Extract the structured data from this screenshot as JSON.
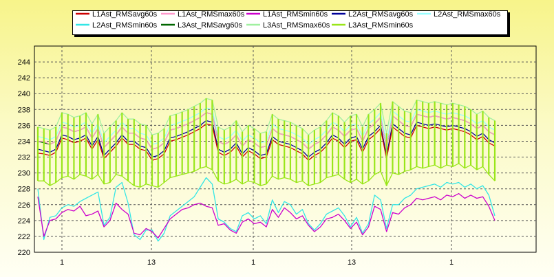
{
  "chart_data": {
    "type": "line",
    "title": "",
    "xlabel": "",
    "ylabel": "",
    "ylim": [
      220,
      246
    ],
    "yticks": [
      220,
      222,
      224,
      226,
      228,
      230,
      232,
      234,
      236,
      238,
      240,
      242,
      244
    ],
    "grid": true,
    "legend_position": "top",
    "x_tick_labels": [
      "1",
      "13",
      "1",
      "13",
      "1"
    ],
    "series": [
      {
        "name": "L1Ast_RMSavg60s",
        "color": "#cc0000",
        "values": [
          232.5,
          232.4,
          232.2,
          232.6,
          234.4,
          234.2,
          233.8,
          234.0,
          234.4,
          233.0,
          234.2,
          231.8,
          232.6,
          233.4,
          234.4,
          233.6,
          233.6,
          233.0,
          232.8,
          231.6,
          231.8,
          232.4,
          234.0,
          234.2,
          234.5,
          234.8,
          235.2,
          235.6,
          236.2,
          236.0,
          232.6,
          232.2,
          232.6,
          233.4,
          232.0,
          232.8,
          232.4,
          231.8,
          232.0,
          234.2,
          233.6,
          233.4,
          233.2,
          232.8,
          232.4,
          231.6,
          232.2,
          232.6,
          233.4,
          234.4,
          234.0,
          233.2,
          234.0,
          234.2,
          232.6,
          234.2,
          234.8,
          235.6,
          231.8,
          235.8,
          235.2,
          234.6,
          234.4,
          236.0,
          235.8,
          235.6,
          235.8,
          235.6,
          235.4,
          235.6,
          235.4,
          235.2,
          234.8,
          234.2,
          234.6,
          233.8,
          233.4
        ]
      },
      {
        "name": "L1Ast_RMSmax60s",
        "color": "#ff99cc",
        "values": [
          234.0,
          234.0,
          233.6,
          234.0,
          235.8,
          235.6,
          235.2,
          235.4,
          235.8,
          234.4,
          235.6,
          233.2,
          234.0,
          234.8,
          235.8,
          235.0,
          235.0,
          234.4,
          234.2,
          233.0,
          233.2,
          233.8,
          235.4,
          235.6,
          235.9,
          236.2,
          236.6,
          237.0,
          237.6,
          237.4,
          234.0,
          233.6,
          234.0,
          234.8,
          233.4,
          234.2,
          233.8,
          233.2,
          233.4,
          235.6,
          235.0,
          234.8,
          234.6,
          234.2,
          233.8,
          233.0,
          233.6,
          234.0,
          234.8,
          235.8,
          235.4,
          234.6,
          235.4,
          235.6,
          234.0,
          235.6,
          236.2,
          237.0,
          233.2,
          237.2,
          236.6,
          236.0,
          235.8,
          237.4,
          237.2,
          237.0,
          237.2,
          237.0,
          236.8,
          237.0,
          236.8,
          236.6,
          236.2,
          235.6,
          236.0,
          235.2,
          234.8
        ]
      },
      {
        "name": "L1Ast_RMSmin60s",
        "color": "#cc00cc",
        "values": [
          227.0,
          222.0,
          224.0,
          224.2,
          225.0,
          225.4,
          225.2,
          225.8,
          224.6,
          224.8,
          225.2,
          223.2,
          224.0,
          226.2,
          225.4,
          224.8,
          222.4,
          222.2,
          223.0,
          222.6,
          221.8,
          223.0,
          224.2,
          224.8,
          225.4,
          225.6,
          226.0,
          226.2,
          225.8,
          225.6,
          223.4,
          223.6,
          222.8,
          222.4,
          223.8,
          224.2,
          223.6,
          223.8,
          223.2,
          225.4,
          224.4,
          225.6,
          225.0,
          224.2,
          224.6,
          223.4,
          222.6,
          223.2,
          224.2,
          224.4,
          224.8,
          224.0,
          223.0,
          223.8,
          222.2,
          223.2,
          225.8,
          225.4,
          222.6,
          225.0,
          224.8,
          225.6,
          226.0,
          226.8,
          226.6,
          226.8,
          227.0,
          226.6,
          227.2,
          227.0,
          227.4,
          226.8,
          227.2,
          226.8,
          227.0,
          225.8,
          224.0
        ]
      },
      {
        "name": "L2Ast_RMSavg60s",
        "color": "#000099",
        "values": [
          233.0,
          232.8,
          232.6,
          233.0,
          234.8,
          234.6,
          234.2,
          234.4,
          234.8,
          233.4,
          234.6,
          232.2,
          233.0,
          233.8,
          234.8,
          234.0,
          234.0,
          233.4,
          233.2,
          232.0,
          232.2,
          232.8,
          234.4,
          234.6,
          234.9,
          235.2,
          235.6,
          236.0,
          236.6,
          236.4,
          233.0,
          232.6,
          233.0,
          233.8,
          232.4,
          233.2,
          232.8,
          232.2,
          232.4,
          234.6,
          234.0,
          233.8,
          233.6,
          233.2,
          232.8,
          232.0,
          232.6,
          233.0,
          233.8,
          234.8,
          234.4,
          233.6,
          234.4,
          234.6,
          233.0,
          234.6,
          235.2,
          236.0,
          232.2,
          236.2,
          235.6,
          235.0,
          234.8,
          236.4,
          236.2,
          236.0,
          236.2,
          236.0,
          235.8,
          236.0,
          235.8,
          235.6,
          235.2,
          234.6,
          235.0,
          234.2,
          233.8
        ]
      },
      {
        "name": "L2Ast_RMSmax60s",
        "color": "#99ffff",
        "values": [
          234.6,
          234.4,
          234.2,
          234.6,
          236.4,
          236.2,
          235.8,
          236.0,
          236.4,
          235.0,
          236.2,
          233.8,
          234.6,
          235.4,
          236.4,
          235.6,
          235.6,
          235.0,
          234.8,
          233.6,
          233.8,
          234.4,
          236.0,
          236.2,
          236.5,
          236.8,
          237.2,
          237.6,
          238.2,
          238.0,
          234.6,
          234.2,
          234.6,
          235.4,
          234.0,
          234.8,
          234.4,
          233.8,
          234.0,
          236.2,
          235.6,
          235.4,
          235.2,
          234.8,
          234.4,
          233.6,
          234.2,
          234.6,
          235.4,
          236.4,
          236.0,
          235.2,
          236.0,
          236.2,
          234.6,
          236.2,
          236.8,
          237.6,
          233.8,
          237.8,
          237.2,
          236.6,
          236.4,
          238.0,
          237.8,
          237.6,
          237.8,
          237.6,
          237.4,
          237.6,
          237.4,
          237.2,
          236.8,
          236.2,
          236.6,
          235.8,
          235.4
        ]
      },
      {
        "name": "L2Ast_RMSmin60s",
        "color": "#33e6e6",
        "values": [
          228.0,
          221.6,
          224.4,
          224.6,
          225.6,
          226.0,
          225.8,
          226.4,
          226.8,
          227.2,
          227.6,
          223.4,
          224.4,
          228.2,
          228.8,
          226.2,
          222.2,
          221.6,
          222.8,
          222.8,
          221.4,
          222.4,
          224.6,
          225.2,
          225.8,
          226.4,
          227.0,
          228.2,
          229.4,
          228.6,
          224.2,
          223.8,
          223.0,
          222.6,
          224.6,
          225.0,
          224.2,
          224.6,
          223.6,
          226.6,
          225.0,
          226.4,
          226.0,
          224.8,
          225.4,
          223.6,
          222.8,
          223.6,
          224.8,
          225.2,
          225.6,
          224.6,
          223.2,
          224.4,
          222.4,
          223.6,
          227.2,
          226.6,
          223.0,
          226.0,
          226.0,
          226.8,
          227.2,
          228.0,
          228.2,
          228.4,
          228.6,
          228.2,
          228.8,
          228.6,
          228.8,
          228.2,
          228.6,
          228.0,
          228.4,
          227.2,
          224.6
        ]
      },
      {
        "name": "L3Ast_RMSavg60s",
        "color": "#006600",
        "values": [
          234.0,
          233.8,
          233.6,
          234.0,
          235.8,
          235.6,
          235.2,
          235.4,
          235.8,
          234.4,
          235.6,
          233.2,
          234.0,
          234.8,
          235.8,
          235.0,
          235.0,
          234.4,
          234.2,
          233.0,
          233.2,
          233.8,
          235.4,
          235.6,
          235.9,
          236.2,
          236.6,
          237.0,
          237.6,
          237.4,
          234.0,
          233.6,
          234.0,
          234.8,
          233.4,
          234.2,
          233.8,
          233.2,
          233.4,
          235.6,
          235.0,
          234.8,
          234.6,
          234.2,
          233.8,
          233.0,
          233.6,
          234.0,
          234.8,
          235.8,
          235.4,
          234.6,
          235.4,
          235.6,
          234.0,
          235.6,
          236.2,
          237.0,
          233.2,
          237.2,
          236.6,
          236.0,
          235.8,
          237.4,
          237.2,
          237.0,
          237.2,
          237.0,
          236.8,
          237.0,
          236.8,
          236.6,
          236.2,
          235.6,
          236.0,
          235.2,
          234.8
        ]
      },
      {
        "name": "L3Ast_RMSmax60s",
        "color": "#a0f0a0",
        "values": [
          235.8,
          235.6,
          235.4,
          235.8,
          237.6,
          237.4,
          237.0,
          237.2,
          237.6,
          236.2,
          237.4,
          235.0,
          235.8,
          236.6,
          237.6,
          236.8,
          236.8,
          236.2,
          236.0,
          234.8,
          235.0,
          235.6,
          237.2,
          237.4,
          237.7,
          238.0,
          238.4,
          238.8,
          239.4,
          239.2,
          235.8,
          235.4,
          235.8,
          236.6,
          235.2,
          236.0,
          235.6,
          235.0,
          235.2,
          237.4,
          236.8,
          236.6,
          236.4,
          236.0,
          235.6,
          234.8,
          235.4,
          235.8,
          236.6,
          237.6,
          237.2,
          236.4,
          237.2,
          237.4,
          235.8,
          237.4,
          238.0,
          238.8,
          235.0,
          239.0,
          238.4,
          237.8,
          237.6,
          239.2,
          239.0,
          238.8,
          239.0,
          238.8,
          238.6,
          238.8,
          238.6,
          238.4,
          238.0,
          237.4,
          237.8,
          237.0,
          236.6
        ]
      },
      {
        "name": "L3Ast_RMSmin60s",
        "color": "#99e619",
        "values": [
          229.0,
          229.0,
          228.4,
          228.8,
          229.4,
          229.6,
          229.2,
          229.8,
          229.6,
          229.2,
          229.8,
          228.6,
          228.8,
          229.8,
          229.6,
          229.0,
          228.4,
          228.2,
          228.6,
          228.4,
          228.2,
          228.8,
          229.4,
          229.6,
          229.8,
          230.0,
          230.2,
          230.6,
          230.8,
          230.4,
          229.0,
          228.6,
          228.8,
          229.2,
          228.6,
          229.0,
          228.8,
          228.4,
          228.6,
          229.6,
          229.2,
          229.4,
          229.2,
          228.8,
          229.0,
          228.4,
          228.6,
          228.8,
          229.4,
          229.6,
          229.8,
          229.2,
          228.8,
          229.2,
          228.6,
          229.0,
          229.8,
          230.2,
          228.4,
          230.0,
          229.8,
          230.2,
          230.4,
          230.8,
          230.6,
          230.8,
          231.0,
          230.6,
          231.0,
          230.8,
          231.2,
          230.6,
          231.0,
          230.4,
          230.8,
          229.8,
          229.0
        ]
      }
    ]
  }
}
